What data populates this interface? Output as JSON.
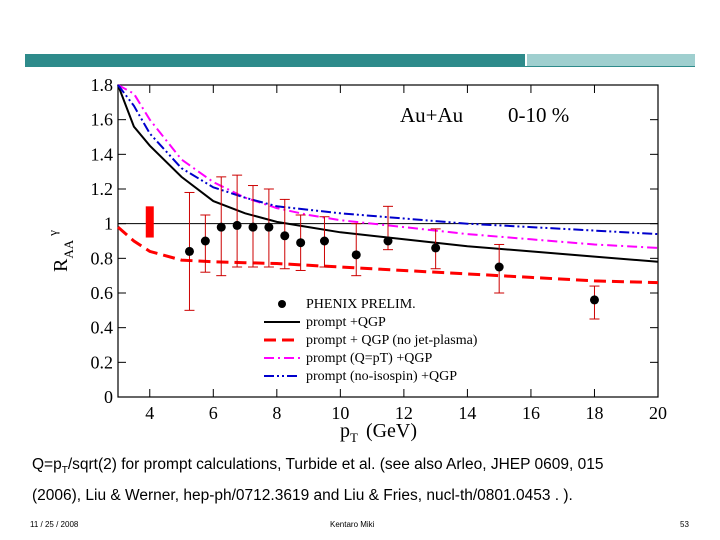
{
  "slide": {
    "caption": {
      "q_eq": "Q=p",
      "q_sub": "T",
      "line1_rest": "/sqrt(2) for prompt calculations,  Turbide et al. (see also  Arleo, JHEP 0609, 015",
      "line2": "(2006), Liu & Werner,  hep-ph/0712.3619 and Liu & Fries, nucl-th/0801.0453 . )."
    },
    "footer": {
      "date": "11 / 25 / 2008",
      "author": "Kentaro Miki",
      "page": "53"
    },
    "colors": {
      "band_left": "#2e8b8b",
      "band_right": "#9fcfcf"
    }
  },
  "chart_data": {
    "type": "line",
    "system_label": "Au+Au",
    "centrality_label": "0-10 %",
    "xlabel_main": "p",
    "xlabel_sub": "T",
    "xlabel_unit": "(GeV)",
    "ylabel_main": "R",
    "ylabel_sub": "AA",
    "ylabel_sup": "γ",
    "xlim": [
      3,
      20
    ],
    "ylim": [
      0,
      1.8
    ],
    "x_ticks": [
      4,
      6,
      8,
      10,
      12,
      14,
      16,
      18,
      20
    ],
    "y_ticks": [
      0,
      0.2,
      0.4,
      0.6,
      0.8,
      1,
      1.2,
      1.4,
      1.6,
      1.8
    ],
    "y_tick_labels": [
      "0",
      "0.2",
      "0.4",
      "0.6",
      "0.8",
      "1",
      "1.2",
      "1.4",
      "1.6",
      "1.8"
    ],
    "reference_line": 1,
    "norm_box": {
      "x": 4.0,
      "y_low": 0.92,
      "y_high": 1.1,
      "color": "#ff0000"
    },
    "points": {
      "name": "PHENIX PRELIM.",
      "color": "#000000",
      "error_color": "#cc0000",
      "data": [
        {
          "x": 5.25,
          "y": 0.84,
          "lo": 0.5,
          "hi": 1.18
        },
        {
          "x": 5.75,
          "y": 0.9,
          "lo": 0.72,
          "hi": 1.05
        },
        {
          "x": 6.25,
          "y": 0.98,
          "lo": 0.7,
          "hi": 1.27
        },
        {
          "x": 6.75,
          "y": 0.99,
          "lo": 0.75,
          "hi": 1.28
        },
        {
          "x": 7.25,
          "y": 0.98,
          "lo": 0.75,
          "hi": 1.22
        },
        {
          "x": 7.75,
          "y": 0.98,
          "lo": 0.75,
          "hi": 1.2
        },
        {
          "x": 8.25,
          "y": 0.93,
          "lo": 0.74,
          "hi": 1.14
        },
        {
          "x": 8.75,
          "y": 0.89,
          "lo": 0.73,
          "hi": 1.05
        },
        {
          "x": 9.5,
          "y": 0.9,
          "lo": 0.75,
          "hi": 1.04
        },
        {
          "x": 10.5,
          "y": 0.82,
          "lo": 0.7,
          "hi": 1.0
        },
        {
          "x": 11.5,
          "y": 0.9,
          "lo": 0.85,
          "hi": 1.1
        },
        {
          "x": 13.0,
          "y": 0.86,
          "lo": 0.74,
          "hi": 0.97
        },
        {
          "x": 15.0,
          "y": 0.75,
          "lo": 0.6,
          "hi": 0.88
        },
        {
          "x": 18.0,
          "y": 0.56,
          "lo": 0.45,
          "hi": 0.64
        }
      ]
    },
    "series": [
      {
        "name": "prompt +QGP",
        "color": "#000000",
        "dash": "solid",
        "x": [
          3.0,
          3.5,
          4.0,
          5.0,
          6.0,
          7.0,
          8.0,
          9.0,
          10.0,
          12.0,
          14.0,
          16.0,
          18.0,
          20.0
        ],
        "y": [
          1.8,
          1.56,
          1.45,
          1.27,
          1.13,
          1.06,
          1.01,
          0.98,
          0.95,
          0.91,
          0.87,
          0.84,
          0.81,
          0.78
        ]
      },
      {
        "name": "prompt + QGP (no jet-plasma)",
        "color": "#ff0000",
        "dash": "long-dash",
        "x": [
          3.0,
          3.5,
          4.0,
          5.0,
          6.0,
          7.0,
          8.0,
          9.0,
          10.0,
          12.0,
          14.0,
          16.0,
          18.0,
          20.0
        ],
        "y": [
          0.98,
          0.9,
          0.84,
          0.79,
          0.78,
          0.775,
          0.77,
          0.76,
          0.75,
          0.73,
          0.71,
          0.69,
          0.67,
          0.66
        ]
      },
      {
        "name": "prompt (Q=pT) +QGP",
        "color": "#ff00ff",
        "dash": "dash-dot",
        "x": [
          3.0,
          3.5,
          4.0,
          5.0,
          6.0,
          7.0,
          8.0,
          9.0,
          10.0,
          12.0,
          14.0,
          16.0,
          18.0,
          20.0
        ],
        "y": [
          1.8,
          1.75,
          1.6,
          1.37,
          1.24,
          1.15,
          1.09,
          1.05,
          1.02,
          0.98,
          0.94,
          0.91,
          0.88,
          0.86
        ]
      },
      {
        "name": "prompt (no-isospin) +QGP",
        "color": "#0000cc",
        "dash": "dash-dot-dot",
        "x": [
          3.0,
          3.5,
          4.0,
          5.0,
          6.0,
          7.0,
          8.0,
          9.0,
          10.0,
          12.0,
          14.0,
          16.0,
          18.0,
          20.0
        ],
        "y": [
          1.8,
          1.68,
          1.52,
          1.32,
          1.21,
          1.15,
          1.1,
          1.08,
          1.06,
          1.03,
          1.0,
          0.98,
          0.96,
          0.94
        ]
      }
    ],
    "legend": {
      "position": "middle-right",
      "entries": [
        "PHENIX PRELIM.",
        "prompt +QGP",
        "prompt + QGP (no jet-plasma)",
        "prompt (Q=pT) +QGP",
        "prompt (no-isospin) +QGP"
      ]
    }
  }
}
